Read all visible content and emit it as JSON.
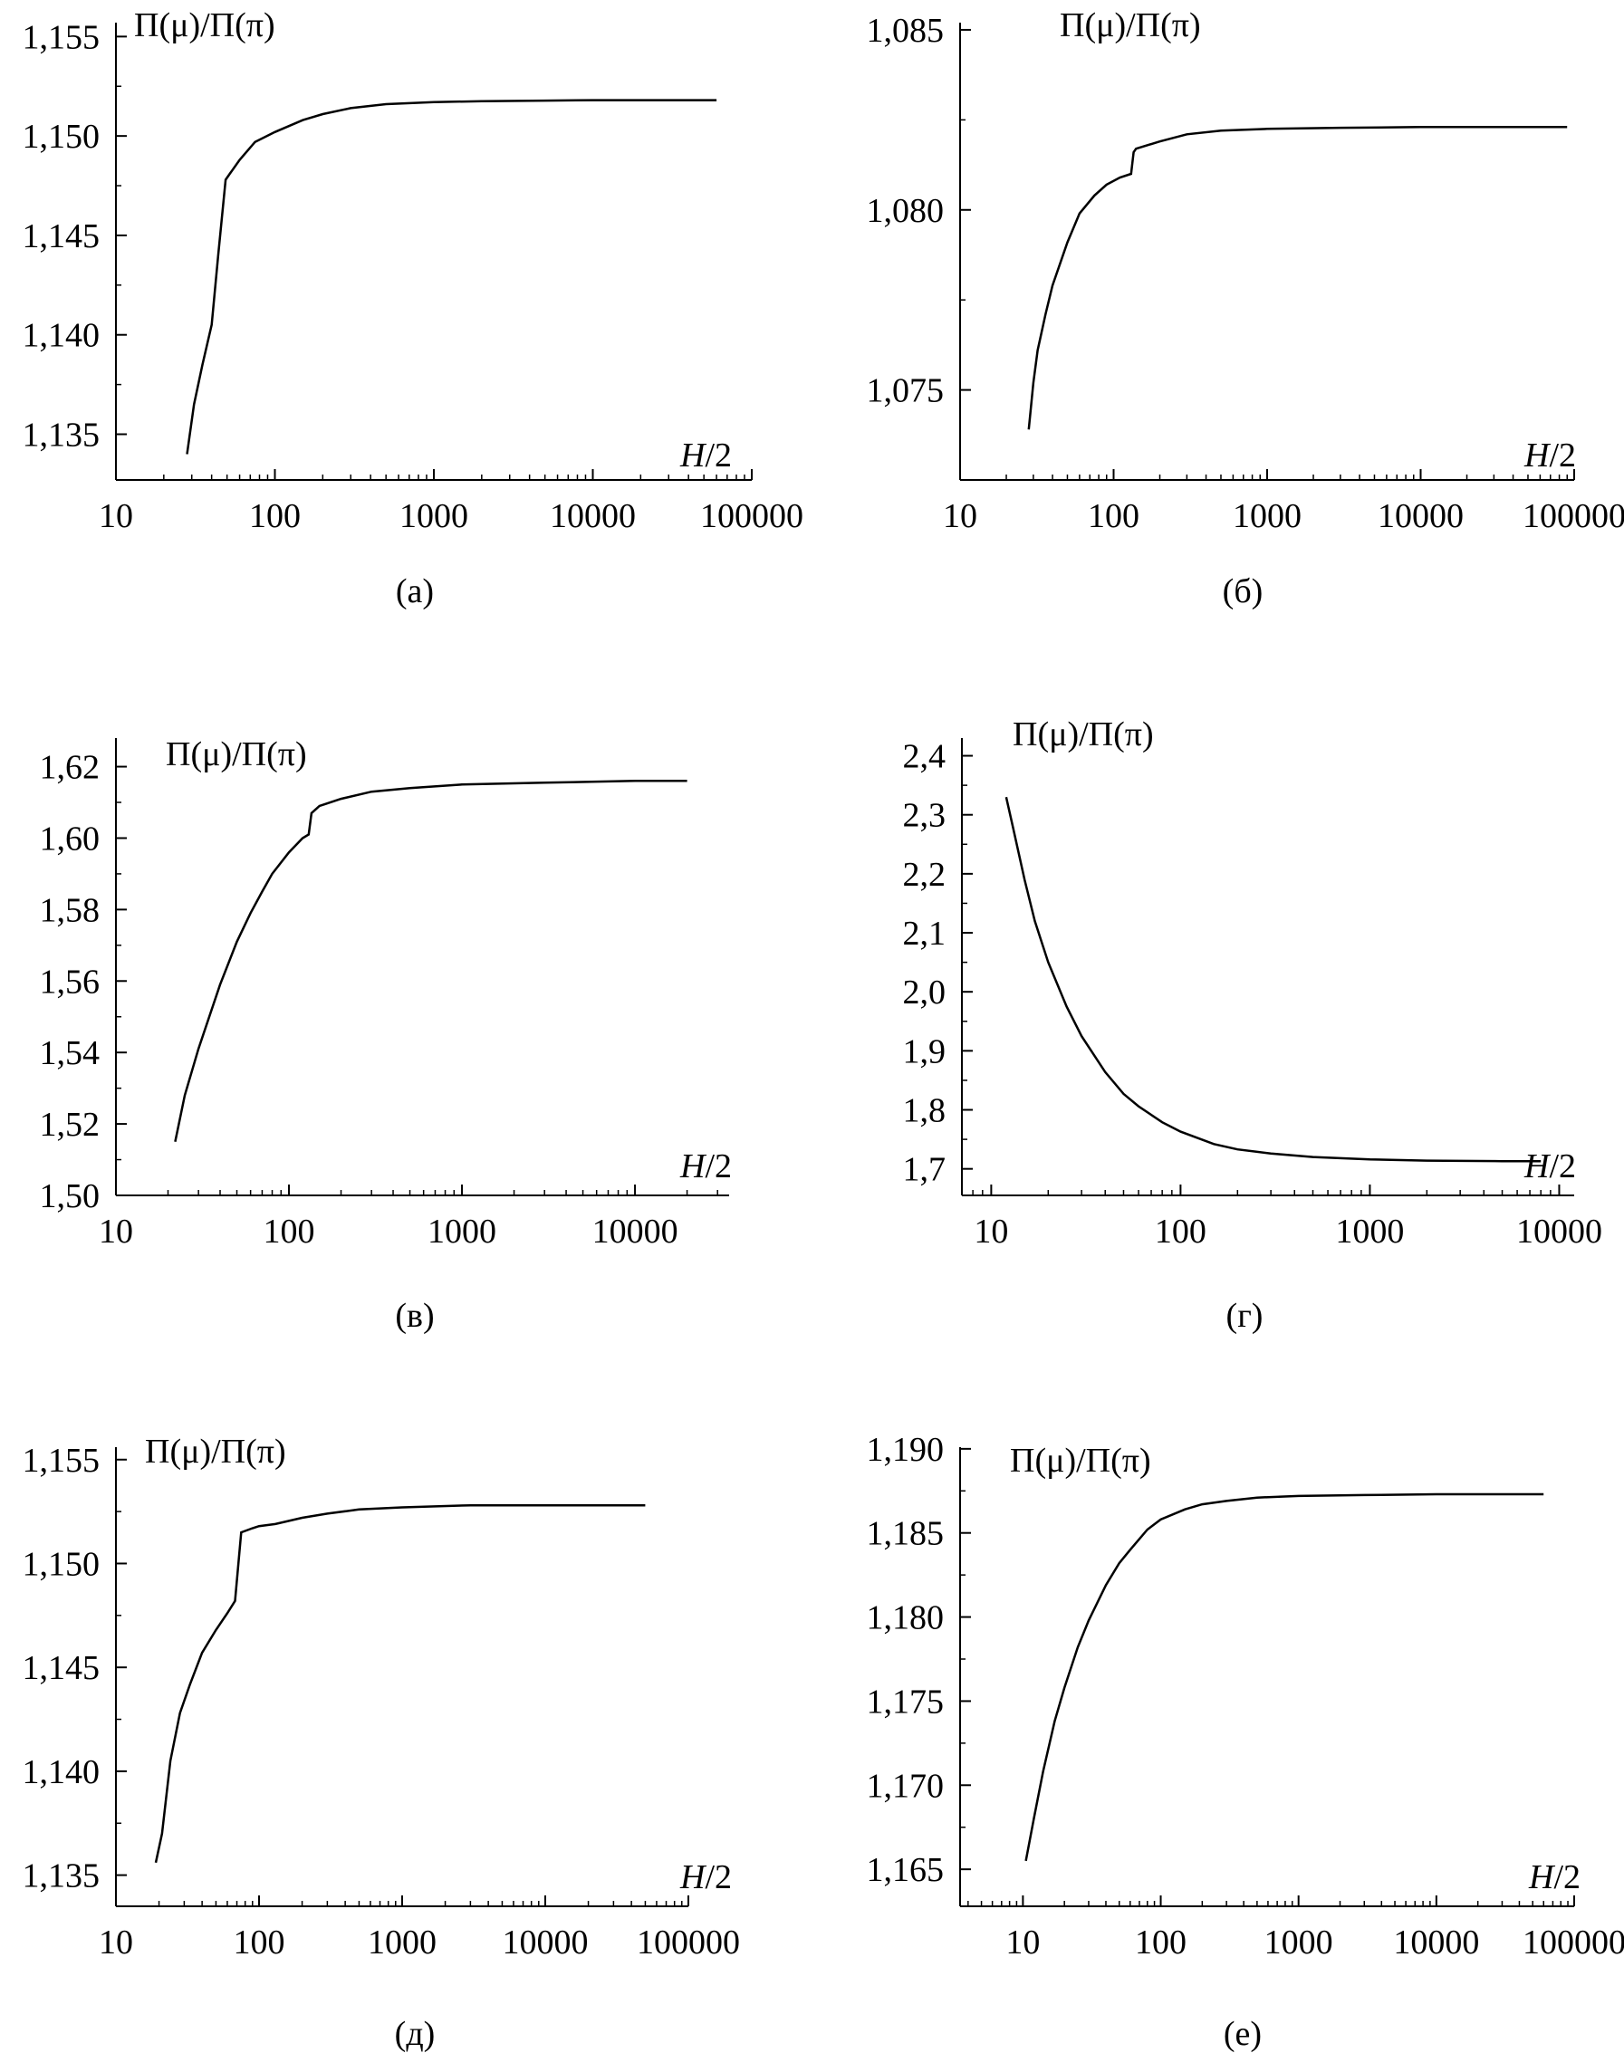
{
  "chart_data": [
    {
      "id": "a",
      "type": "line",
      "caption": "(а)",
      "ylabel": "Π(μ)/Π(π)",
      "xlabel_italic": "H",
      "xlabel_rest": "/2",
      "xscale": "log",
      "xlim": [
        10,
        100000
      ],
      "ylim": [
        1.1327,
        1.1557
      ],
      "xticks": [
        10,
        100,
        1000,
        10000,
        100000
      ],
      "xtick_labels": [
        "10",
        "100",
        "1000",
        "10000",
        "100000"
      ],
      "yticks": [
        1.135,
        1.14,
        1.145,
        1.15,
        1.155
      ],
      "ytick_labels": [
        "1,135",
        "1,140",
        "1,145",
        "1,150",
        "1,155"
      ],
      "series": [
        {
          "name": "Π(μ)/Π(π)",
          "x": [
            28,
            31,
            35,
            40,
            44,
            49,
            52,
            60,
            75,
            100,
            150,
            200,
            300,
            500,
            1000,
            2000,
            5000,
            10000,
            30000,
            60000
          ],
          "y": [
            1.134,
            1.1365,
            1.1385,
            1.1405,
            1.144,
            1.1478,
            1.1481,
            1.1488,
            1.1497,
            1.1502,
            1.1508,
            1.1511,
            1.1514,
            1.1516,
            1.1517,
            1.15175,
            1.15178,
            1.1518,
            1.1518,
            1.1518
          ]
        }
      ]
    },
    {
      "id": "b",
      "type": "line",
      "caption": "(б)",
      "ylabel": "Π(μ)/Π(π)",
      "xlabel_italic": "H",
      "xlabel_rest": "/2",
      "xscale": "log",
      "xlim": [
        10,
        100000
      ],
      "ylim": [
        1.0725,
        1.0852
      ],
      "xticks": [
        10,
        100,
        1000,
        10000,
        100000
      ],
      "xtick_labels": [
        "10",
        "100",
        "1000",
        "10000",
        "100000"
      ],
      "yticks": [
        1.075,
        1.08,
        1.085
      ],
      "ytick_labels": [
        "1,075",
        "1,080",
        "1,085"
      ],
      "series": [
        {
          "name": "Π(μ)/Π(π)",
          "x": [
            28,
            30,
            32,
            36,
            40,
            50,
            60,
            75,
            90,
            110,
            130,
            135,
            140,
            200,
            300,
            500,
            1000,
            3000,
            10000,
            30000,
            90000
          ],
          "y": [
            1.0739,
            1.0752,
            1.0761,
            1.0771,
            1.0779,
            1.0791,
            1.0799,
            1.0804,
            1.0807,
            1.0809,
            1.081,
            1.0816,
            1.0817,
            1.0819,
            1.0821,
            1.0822,
            1.08225,
            1.08228,
            1.0823,
            1.0823,
            1.0823
          ]
        }
      ]
    },
    {
      "id": "c",
      "type": "line",
      "caption": "(в)",
      "ylabel": "Π(μ)/Π(π)",
      "xlabel_italic": "H",
      "xlabel_rest": "/2",
      "xscale": "log",
      "xlim": [
        10,
        35000
      ],
      "ylim": [
        1.5,
        1.628
      ],
      "xticks": [
        10,
        100,
        1000,
        10000
      ],
      "xtick_labels": [
        "10",
        "100",
        "1000",
        "10000"
      ],
      "yticks": [
        1.5,
        1.52,
        1.54,
        1.56,
        1.58,
        1.6,
        1.62
      ],
      "ytick_labels": [
        "1,50",
        "1,52",
        "1,54",
        "1,56",
        "1,58",
        "1,60",
        "1,62"
      ],
      "series": [
        {
          "name": "Π(μ)/Π(π)",
          "x": [
            22,
            25,
            30,
            40,
            50,
            60,
            70,
            80,
            100,
            120,
            130,
            135,
            150,
            200,
            300,
            500,
            1000,
            3000,
            10000,
            20000
          ],
          "y": [
            1.515,
            1.528,
            1.541,
            1.559,
            1.571,
            1.579,
            1.585,
            1.59,
            1.596,
            1.6,
            1.601,
            1.607,
            1.609,
            1.611,
            1.613,
            1.614,
            1.615,
            1.6155,
            1.616,
            1.616
          ]
        }
      ]
    },
    {
      "id": "d",
      "type": "line",
      "caption": "(г)",
      "ylabel": "Π(μ)/Π(π)",
      "xlabel_italic": "H",
      "xlabel_rest": "/2",
      "xscale": "log",
      "xlim": [
        7,
        12000
      ],
      "ylim": [
        1.655,
        2.43
      ],
      "xticks": [
        10,
        100,
        1000,
        10000
      ],
      "xtick_labels": [
        "10",
        "100",
        "1000",
        "10000"
      ],
      "yticks": [
        1.7,
        1.8,
        1.9,
        2.0,
        2.1,
        2.2,
        2.3,
        2.4
      ],
      "ytick_labels": [
        "1,7",
        "1,8",
        "1,9",
        "2,0",
        "2,1",
        "2,2",
        "2,3",
        "2,4"
      ],
      "series": [
        {
          "name": "Π(μ)/Π(π)",
          "x": [
            12,
            13,
            15,
            17,
            20,
            25,
            30,
            40,
            50,
            60,
            80,
            100,
            150,
            200,
            300,
            500,
            1000,
            2000,
            5000,
            8000
          ],
          "y": [
            2.33,
            2.28,
            2.19,
            2.12,
            2.05,
            1.975,
            1.925,
            1.864,
            1.827,
            1.806,
            1.779,
            1.763,
            1.742,
            1.733,
            1.726,
            1.72,
            1.716,
            1.714,
            1.713,
            1.713
          ]
        }
      ]
    },
    {
      "id": "e",
      "type": "line",
      "caption": "(д)",
      "ylabel": "Π(μ)/Π(π)",
      "xlabel_italic": "H",
      "xlabel_rest": "/2",
      "xscale": "log",
      "xlim": [
        10,
        100000
      ],
      "ylim": [
        1.1335,
        1.1556
      ],
      "xticks": [
        10,
        100,
        1000,
        10000,
        100000
      ],
      "xtick_labels": [
        "10",
        "100",
        "1000",
        "10000",
        "100000"
      ],
      "yticks": [
        1.135,
        1.14,
        1.145,
        1.15,
        1.155
      ],
      "ytick_labels": [
        "1,135",
        "1,140",
        "1,145",
        "1,150",
        "1,155"
      ],
      "series": [
        {
          "name": "Π(μ)/Π(π)",
          "x": [
            19,
            21,
            24,
            28,
            33,
            40,
            50,
            60,
            68,
            75,
            90,
            100,
            130,
            200,
            300,
            500,
            1000,
            3000,
            10000,
            50000
          ],
          "y": [
            1.1356,
            1.137,
            1.1405,
            1.1428,
            1.1442,
            1.1457,
            1.1468,
            1.1476,
            1.1482,
            1.1515,
            1.1517,
            1.1518,
            1.1519,
            1.1522,
            1.1524,
            1.1526,
            1.1527,
            1.1528,
            1.1528,
            1.1528
          ]
        }
      ]
    },
    {
      "id": "f",
      "type": "line",
      "caption": "(е)",
      "ylabel": "Π(μ)/Π(π)",
      "xlabel_italic": "H",
      "xlabel_rest": "/2",
      "xscale": "log",
      "xlim": [
        3.5,
        100000
      ],
      "ylim": [
        1.1628,
        1.1901
      ],
      "xticks": [
        10,
        100,
        1000,
        10000,
        100000
      ],
      "xtick_labels": [
        "10",
        "100",
        "1000",
        "10000",
        "100000"
      ],
      "yticks": [
        1.165,
        1.17,
        1.175,
        1.18,
        1.185,
        1.19
      ],
      "ytick_labels": [
        "1,165",
        "1,170",
        "1,175",
        "1,180",
        "1,185",
        "1,190"
      ],
      "series": [
        {
          "name": "Π(μ)/Π(π)",
          "x": [
            10.5,
            12,
            14,
            17,
            20,
            25,
            30,
            40,
            50,
            60,
            80,
            100,
            150,
            200,
            300,
            500,
            1000,
            3000,
            10000,
            60000
          ],
          "y": [
            1.1655,
            1.168,
            1.1708,
            1.1738,
            1.1758,
            1.1782,
            1.1798,
            1.1819,
            1.1832,
            1.184,
            1.1852,
            1.1858,
            1.1864,
            1.1867,
            1.1869,
            1.1871,
            1.1872,
            1.18725,
            1.1873,
            1.1873
          ]
        }
      ]
    }
  ]
}
